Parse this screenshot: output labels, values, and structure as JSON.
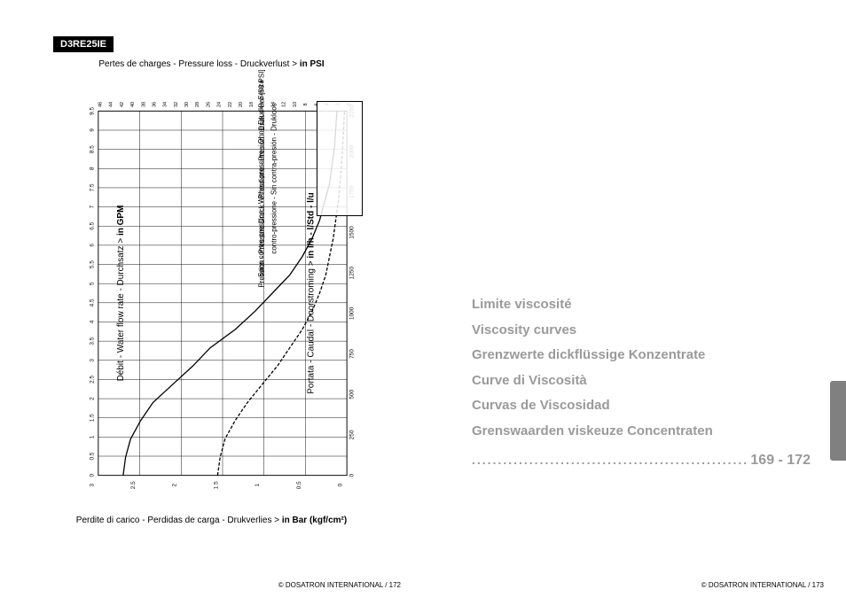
{
  "left": {
    "model": "D3RE25IE",
    "topAxisLabel": "Pertes de charges - Pressure loss - Druckverlust >",
    "topAxisBold": "in PSI",
    "leftAxisLabel": "Débit - Water flow rate - Durchsatz >",
    "leftAxisBold": "in GPM",
    "rightAxisLabel": "Portata - Caudal - Doorstroming >",
    "rightAxisBold": "in l/h - l/Std - l/u",
    "bottomAxisLabel": "Perdite di carico - Perdidas de carga - Drukverlies >",
    "bottomAxisBold": "in Bar (kgf/cm²)",
    "footer": "© DOSATRON INTERNATIONAL / 172",
    "legend": {
      "line1": "Pression - Pressure Druck - Pressione - Presión - Druk 4 Bar [58 PSI]",
      "line2": "Sans contre-pression - Without pressure - Ohne Druck - Senza",
      "line3": "contro-pressione - Sin contra-presión - Drukloos"
    },
    "chart": {
      "background": "#ffffff",
      "gridColor": "#000000",
      "curveColor": "#000000",
      "curveWidth": 1.4,
      "topTicks": [
        "46",
        "44",
        "42",
        "40",
        "38",
        "36",
        "34",
        "32",
        "30",
        "28",
        "26",
        "24",
        "22",
        "20",
        "18",
        "16",
        "14",
        "12",
        "10",
        "8",
        "6",
        "4",
        "2",
        "0"
      ],
      "bottomTicks": [
        "3",
        "2.5",
        "2",
        "1.5",
        "1",
        "0.5",
        "0"
      ],
      "leftTicks": [
        "0",
        "0.5",
        "1",
        "1.5",
        "2",
        "2.5",
        "3",
        "3.5",
        "4",
        "4.5",
        "5",
        "5.5",
        "6",
        "6.5",
        "7",
        "7.5",
        "8",
        "8.5",
        "9",
        "9.5"
      ],
      "rightTicks": [
        "0",
        "250",
        "500",
        "750",
        "1000",
        "1250",
        "1500",
        "1750",
        "2000",
        "2250"
      ],
      "curveA": [
        [
          0.1,
          0.0
        ],
        [
          0.11,
          0.05
        ],
        [
          0.13,
          0.1
        ],
        [
          0.17,
          0.15
        ],
        [
          0.22,
          0.2
        ],
        [
          0.3,
          0.25
        ],
        [
          0.38,
          0.3
        ],
        [
          0.45,
          0.35
        ],
        [
          0.55,
          0.4
        ],
        [
          0.63,
          0.45
        ],
        [
          0.7,
          0.5
        ],
        [
          0.77,
          0.55
        ],
        [
          0.82,
          0.6
        ],
        [
          0.86,
          0.65
        ],
        [
          0.89,
          0.7
        ],
        [
          0.91,
          0.75
        ],
        [
          0.93,
          0.8
        ],
        [
          0.94,
          0.85
        ],
        [
          0.95,
          0.9
        ],
        [
          0.955,
          0.95
        ],
        [
          0.96,
          1.0
        ]
      ],
      "curveB": [
        [
          0.48,
          0.0
        ],
        [
          0.49,
          0.05
        ],
        [
          0.51,
          0.1
        ],
        [
          0.55,
          0.15
        ],
        [
          0.6,
          0.2
        ],
        [
          0.66,
          0.25
        ],
        [
          0.72,
          0.3
        ],
        [
          0.77,
          0.35
        ],
        [
          0.82,
          0.4
        ],
        [
          0.86,
          0.45
        ],
        [
          0.89,
          0.5
        ],
        [
          0.915,
          0.55
        ],
        [
          0.93,
          0.6
        ],
        [
          0.945,
          0.65
        ],
        [
          0.955,
          0.7
        ],
        [
          0.965,
          0.75
        ],
        [
          0.972,
          0.8
        ],
        [
          0.978,
          0.85
        ],
        [
          0.983,
          0.9
        ],
        [
          0.987,
          0.95
        ],
        [
          0.99,
          1.0
        ]
      ]
    }
  },
  "right": {
    "titles": [
      "Limite viscosité",
      "Viscosity curves",
      "Grenzwerte dickflüssige Konzentrate",
      "Curve di Viscosità",
      "Curvas de Viscosidad",
      "Grenswaarden viskeuze Concentraten"
    ],
    "pageRange": "169 - 172",
    "footer": "© DOSATRON INTERNATIONAL / 173"
  }
}
